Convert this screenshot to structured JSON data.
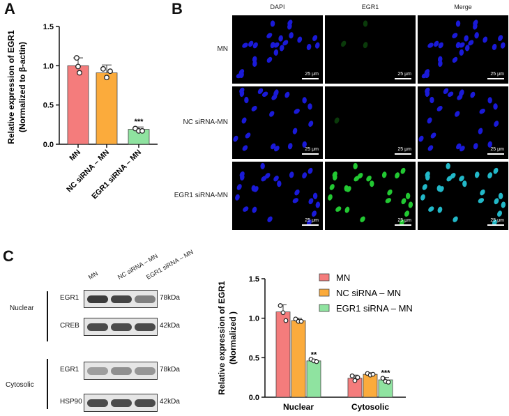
{
  "panels": {
    "a": "A",
    "b": "B",
    "c": "C"
  },
  "colors": {
    "mn": "#f47c7c",
    "nc": "#fbab3c",
    "egr1": "#8fe3a0",
    "edge": "#333333"
  },
  "chart_data": [
    {
      "type": "bar",
      "ylabel_line1": "Relative expression of EGR1",
      "ylabel_line2": "(Normalized to β-actin)",
      "ylim": [
        0,
        1.5
      ],
      "yticks": [
        "0.0",
        "0.5",
        "1.0",
        "1.5"
      ],
      "categories": [
        "MN",
        "NC siRNA – MN",
        "EGR1 siRNA – MN"
      ],
      "values": [
        1.0,
        0.91,
        0.19
      ],
      "errors": [
        0.1,
        0.1,
        0.03
      ],
      "points": [
        [
          1.1,
          0.99,
          0.91
        ],
        [
          0.96,
          0.85,
          0.93
        ],
        [
          0.2,
          0.17,
          0.17
        ]
      ],
      "annotations": [
        "",
        "",
        "***"
      ]
    },
    {
      "type": "bar",
      "ylabel_line1": "Relative expression of EGR1",
      "ylabel_line2": "(Normalized )",
      "ylim": [
        0,
        1.5
      ],
      "yticks": [
        "0.0",
        "0.5",
        "1.0",
        "1.5"
      ],
      "categories": [
        "Nuclear",
        "Cytosolic"
      ],
      "series": [
        {
          "name": "MN",
          "values": [
            1.08,
            0.24
          ],
          "errors": [
            0.09,
            0.04
          ],
          "points": [
            [
              1.16,
              1.07,
              0.97
            ],
            [
              0.27,
              0.21,
              0.25
            ]
          ],
          "annotations": [
            "",
            ""
          ]
        },
        {
          "name": "NC siRNA – MN",
          "values": [
            0.97,
            0.29
          ],
          "errors": [
            0.03,
            0.02
          ],
          "points": [
            [
              0.99,
              0.96,
              0.96
            ],
            [
              0.3,
              0.28,
              0.29
            ]
          ],
          "annotations": [
            "",
            ""
          ]
        },
        {
          "name": "EGR1 siRNA – MN",
          "values": [
            0.46,
            0.22
          ],
          "errors": [
            0.02,
            0.03
          ],
          "points": [
            [
              0.48,
              0.46,
              0.45
            ],
            [
              0.24,
              0.2,
              0.19
            ]
          ],
          "annotations": [
            "**",
            "***"
          ]
        }
      ],
      "legend": "top-right"
    }
  ],
  "microscopy": {
    "columns": [
      "DAPI",
      "EGR1",
      "Merge"
    ],
    "rows": [
      "MN",
      "NC siRNA-MN",
      "EGR1 siRNA-MN"
    ],
    "scale_label": "25 μm"
  },
  "western": {
    "lanes": [
      "MN",
      "NC siRNA – MN",
      "EGR1 siRNA – MN"
    ],
    "fractions": [
      "Nuclear",
      "Cytosolic"
    ],
    "blots": [
      {
        "label": "EGR1",
        "kda": "78kDa"
      },
      {
        "label": "CREB",
        "kda": "42kDa"
      },
      {
        "label": "EGR1",
        "kda": "78kDa"
      },
      {
        "label": "HSP90",
        "kda": "42kDa"
      }
    ]
  }
}
